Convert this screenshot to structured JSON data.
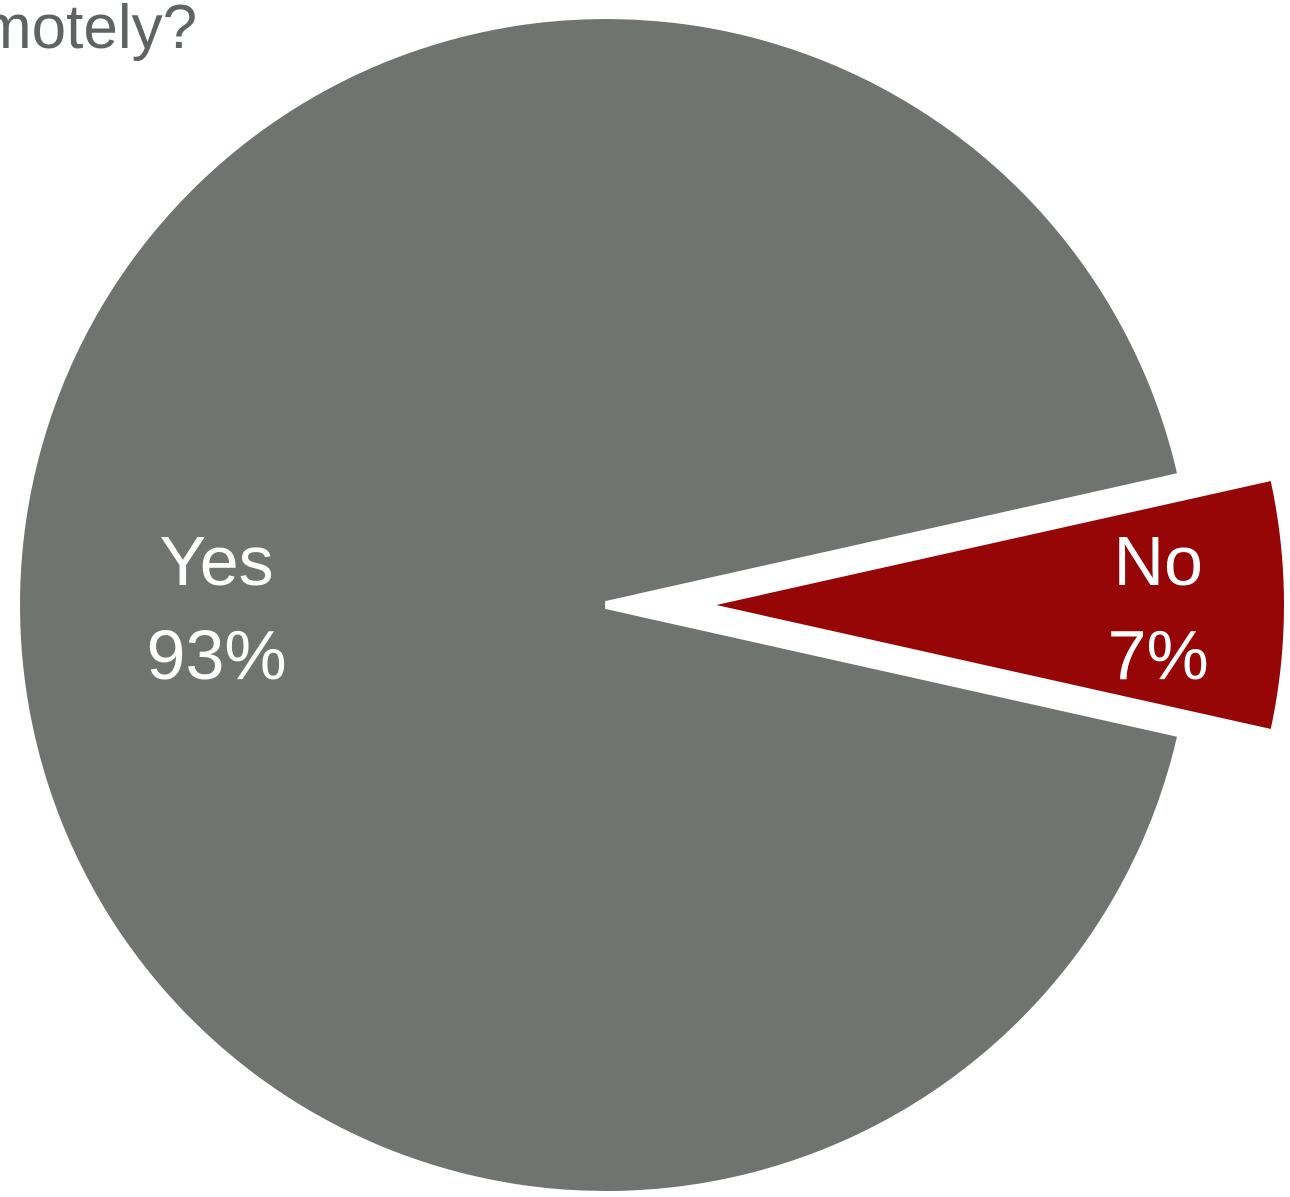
{
  "chart_data": {
    "type": "pie",
    "title": "motely?",
    "slices": [
      {
        "label": "Yes",
        "value": 93,
        "value_label": "93%",
        "color": "#6f7471",
        "exploded": false
      },
      {
        "label": "No",
        "value": 7,
        "value_label": "7%",
        "color": "#960606",
        "exploded": true
      }
    ],
    "legend": "none",
    "data_labels": "inside"
  }
}
